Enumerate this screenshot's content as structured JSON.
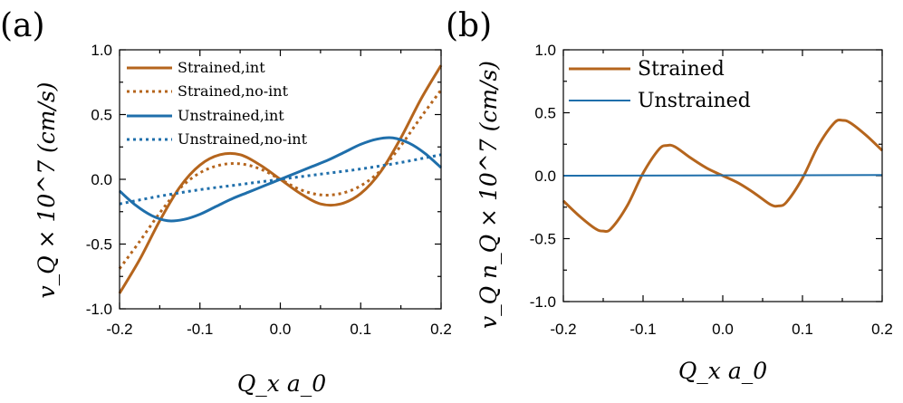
{
  "chart_data": [
    {
      "type": "line",
      "panel_label": "(a)",
      "xlabel": "Q_x a_0",
      "ylabel": "v_Q × 10^7 (cm/s)",
      "xlim": [
        -0.2,
        0.2
      ],
      "ylim": [
        -1.0,
        1.0
      ],
      "x_ticks": [
        "-0.2",
        "-0.1",
        "0.0",
        "0.1",
        "0.2"
      ],
      "y_ticks": [
        "1.0",
        "0.5",
        "0.0",
        "-0.5",
        "-1.0"
      ],
      "legend_position": "top-left",
      "series": [
        {
          "name": "Strained,int",
          "color": "#b5651d",
          "dash": "solid",
          "x": [
            -0.2,
            -0.175,
            -0.15,
            -0.125,
            -0.1,
            -0.075,
            -0.05,
            -0.025,
            0.0,
            0.025,
            0.05,
            0.075,
            0.1,
            0.125,
            0.15,
            0.175,
            0.2
          ],
          "y": [
            -0.88,
            -0.62,
            -0.32,
            -0.06,
            0.11,
            0.19,
            0.19,
            0.11,
            0.0,
            -0.11,
            -0.19,
            -0.19,
            -0.11,
            0.06,
            0.32,
            0.62,
            0.88
          ]
        },
        {
          "name": "Strained,no-int",
          "color": "#b5651d",
          "dash": "dotted",
          "x": [
            -0.2,
            -0.175,
            -0.15,
            -0.125,
            -0.1,
            -0.075,
            -0.05,
            -0.025,
            0.0,
            0.025,
            0.05,
            0.075,
            0.1,
            0.125,
            0.15,
            0.175,
            0.2
          ],
          "y": [
            -0.69,
            -0.48,
            -0.26,
            -0.07,
            0.05,
            0.11,
            0.12,
            0.08,
            0.0,
            -0.08,
            -0.12,
            -0.11,
            -0.05,
            0.07,
            0.26,
            0.48,
            0.69
          ]
        },
        {
          "name": "Unstrained,int",
          "color": "#1f6fab",
          "dash": "solid",
          "x": [
            -0.2,
            -0.18,
            -0.16,
            -0.14,
            -0.12,
            -0.1,
            -0.08,
            -0.06,
            -0.04,
            -0.02,
            0.0,
            0.02,
            0.04,
            0.06,
            0.08,
            0.1,
            0.12,
            0.14,
            0.16,
            0.18,
            0.2
          ],
          "y": [
            -0.09,
            -0.2,
            -0.28,
            -0.32,
            -0.31,
            -0.27,
            -0.21,
            -0.15,
            -0.1,
            -0.05,
            0.0,
            0.05,
            0.1,
            0.15,
            0.21,
            0.27,
            0.31,
            0.32,
            0.28,
            0.2,
            0.09
          ]
        },
        {
          "name": "Unstrained,no-int",
          "color": "#1f6fab",
          "dash": "dotted",
          "x": [
            -0.2,
            -0.15,
            -0.1,
            -0.05,
            0.0,
            0.05,
            0.1,
            0.15,
            0.2
          ],
          "y": [
            -0.19,
            -0.13,
            -0.08,
            -0.04,
            0.0,
            0.04,
            0.08,
            0.13,
            0.19
          ]
        }
      ]
    },
    {
      "type": "line",
      "panel_label": "(b)",
      "xlabel": "Q_x a_0",
      "ylabel": "v_Q n_Q × 10^7 (cm/s)",
      "xlim": [
        -0.2,
        0.2
      ],
      "ylim": [
        -1.0,
        1.0
      ],
      "x_ticks": [
        "-0.2",
        "-0.1",
        "0.0",
        "0.1",
        "0.2"
      ],
      "y_ticks": [
        "1.0",
        "0.5",
        "0.0",
        "-0.5",
        "-1.0"
      ],
      "legend_position": "top-left",
      "series": [
        {
          "name": "Strained",
          "color": "#b5651d",
          "dash": "solid",
          "x": [
            -0.2,
            -0.18,
            -0.16,
            -0.15,
            -0.14,
            -0.12,
            -0.1,
            -0.08,
            -0.07,
            -0.06,
            -0.04,
            -0.02,
            0.0,
            0.02,
            0.04,
            0.06,
            0.07,
            0.08,
            0.1,
            0.12,
            0.14,
            0.15,
            0.16,
            0.18,
            0.2
          ],
          "y": [
            -0.2,
            -0.32,
            -0.42,
            -0.44,
            -0.42,
            -0.24,
            0.02,
            0.21,
            0.24,
            0.23,
            0.14,
            0.06,
            0.0,
            -0.06,
            -0.14,
            -0.23,
            -0.24,
            -0.21,
            -0.02,
            0.24,
            0.42,
            0.44,
            0.42,
            0.32,
            0.2
          ]
        },
        {
          "name": "Unstrained",
          "color": "#1f6fab",
          "dash": "solid",
          "x": [
            -0.2,
            0.2
          ],
          "y": [
            0.0,
            0.005
          ]
        }
      ]
    }
  ]
}
